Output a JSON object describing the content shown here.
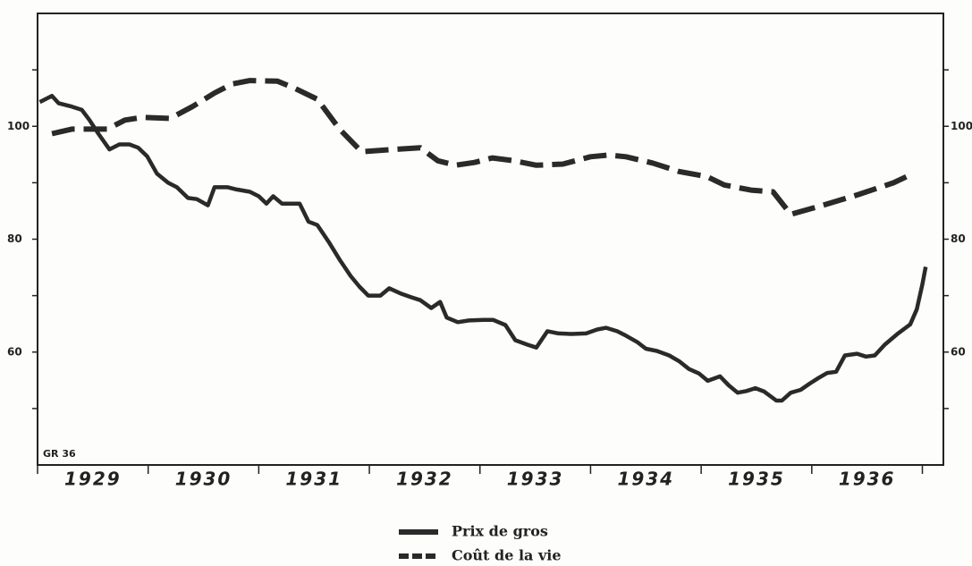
{
  "chart_data": {
    "type": "line",
    "annotation": "GR 36",
    "xlim": [
      1929,
      1937.19
    ],
    "xticks": [
      1929,
      1930,
      1931,
      1932,
      1933,
      1934,
      1935,
      1936,
      1937
    ],
    "year_labels": [
      "1929",
      "1930",
      "1931",
      "1932",
      "1933",
      "1934",
      "1935",
      "1936"
    ],
    "ylim": [
      40,
      120
    ],
    "yticks": [
      100,
      80,
      60
    ],
    "minor_yticks": [
      110,
      90,
      70,
      50
    ],
    "series": [
      {
        "name": "Prix de gros",
        "color": "#2a2a2a",
        "dash": "solid",
        "x": [
          1929.02,
          1929.13,
          1929.19,
          1929.31,
          1929.4,
          1929.47,
          1929.55,
          1929.65,
          1929.74,
          1929.83,
          1929.91,
          1929.99,
          1930.08,
          1930.18,
          1930.26,
          1930.36,
          1930.44,
          1930.54,
          1930.6,
          1930.72,
          1930.8,
          1930.92,
          1931.0,
          1931.07,
          1931.13,
          1931.21,
          1931.29,
          1931.37,
          1931.45,
          1931.53,
          1931.64,
          1931.73,
          1931.83,
          1931.91,
          1931.99,
          1932.1,
          1932.18,
          1932.28,
          1932.38,
          1932.46,
          1932.56,
          1932.64,
          1932.7,
          1932.8,
          1932.9,
          1933.03,
          1933.12,
          1933.23,
          1933.32,
          1933.43,
          1933.51,
          1933.61,
          1933.71,
          1933.83,
          1933.96,
          1934.06,
          1934.14,
          1934.24,
          1934.32,
          1934.42,
          1934.5,
          1934.6,
          1934.71,
          1934.8,
          1934.89,
          1934.98,
          1935.06,
          1935.17,
          1935.25,
          1935.33,
          1935.41,
          1935.49,
          1935.57,
          1935.68,
          1935.73,
          1935.81,
          1935.9,
          1935.98,
          1936.06,
          1936.14,
          1936.22,
          1936.3,
          1936.41,
          1936.49,
          1936.57,
          1936.66,
          1936.78,
          1936.89,
          1936.95,
          1937.0,
          1937.03
        ],
        "values": [
          104.3,
          105.4,
          104.1,
          103.5,
          102.9,
          101.1,
          98.7,
          95.9,
          96.8,
          96.8,
          96.2,
          94.7,
          91.6,
          90.0,
          89.2,
          87.3,
          87.1,
          86.0,
          89.2,
          89.2,
          88.8,
          88.4,
          87.6,
          86.3,
          87.6,
          86.3,
          86.3,
          86.3,
          83.1,
          82.5,
          79.3,
          76.4,
          73.5,
          71.6,
          70.0,
          70.0,
          71.3,
          70.4,
          69.7,
          69.2,
          67.8,
          68.9,
          66.1,
          65.3,
          65.6,
          65.7,
          65.7,
          64.8,
          62.1,
          61.3,
          60.8,
          63.7,
          63.3,
          63.2,
          63.3,
          64.0,
          64.3,
          63.7,
          62.9,
          61.8,
          60.6,
          60.2,
          59.4,
          58.4,
          57.0,
          56.2,
          54.9,
          55.7,
          54.1,
          52.8,
          53.1,
          53.6,
          53.0,
          51.4,
          51.4,
          52.8,
          53.3,
          54.4,
          55.4,
          56.3,
          56.5,
          59.4,
          59.7,
          59.2,
          59.4,
          61.3,
          63.3,
          64.9,
          67.6,
          72.0,
          75.1
        ]
      },
      {
        "name": "Coût de la vie",
        "color": "#2a2a2a",
        "dash": "dashed",
        "x": [
          1929.13,
          1929.31,
          1929.47,
          1929.63,
          1929.79,
          1929.95,
          1930.2,
          1930.4,
          1930.6,
          1930.76,
          1930.92,
          1931.17,
          1931.33,
          1931.53,
          1931.73,
          1931.93,
          1932.22,
          1932.46,
          1932.62,
          1932.78,
          1932.95,
          1933.11,
          1933.31,
          1933.51,
          1933.75,
          1934.0,
          1934.16,
          1934.32,
          1934.56,
          1934.8,
          1935.05,
          1935.21,
          1935.45,
          1935.65,
          1935.81,
          1936.1,
          1936.42,
          1936.74,
          1936.87
        ],
        "values": [
          98.7,
          99.5,
          99.5,
          99.5,
          101.1,
          101.6,
          101.4,
          103.5,
          105.9,
          107.5,
          108.1,
          108.0,
          106.7,
          104.8,
          99.5,
          95.5,
          95.9,
          96.2,
          93.9,
          93.1,
          93.6,
          94.4,
          93.9,
          93.1,
          93.3,
          94.6,
          94.9,
          94.6,
          93.5,
          92.0,
          91.1,
          89.6,
          88.7,
          88.4,
          84.4,
          86.0,
          87.9,
          90.0,
          91.2
        ]
      }
    ]
  }
}
